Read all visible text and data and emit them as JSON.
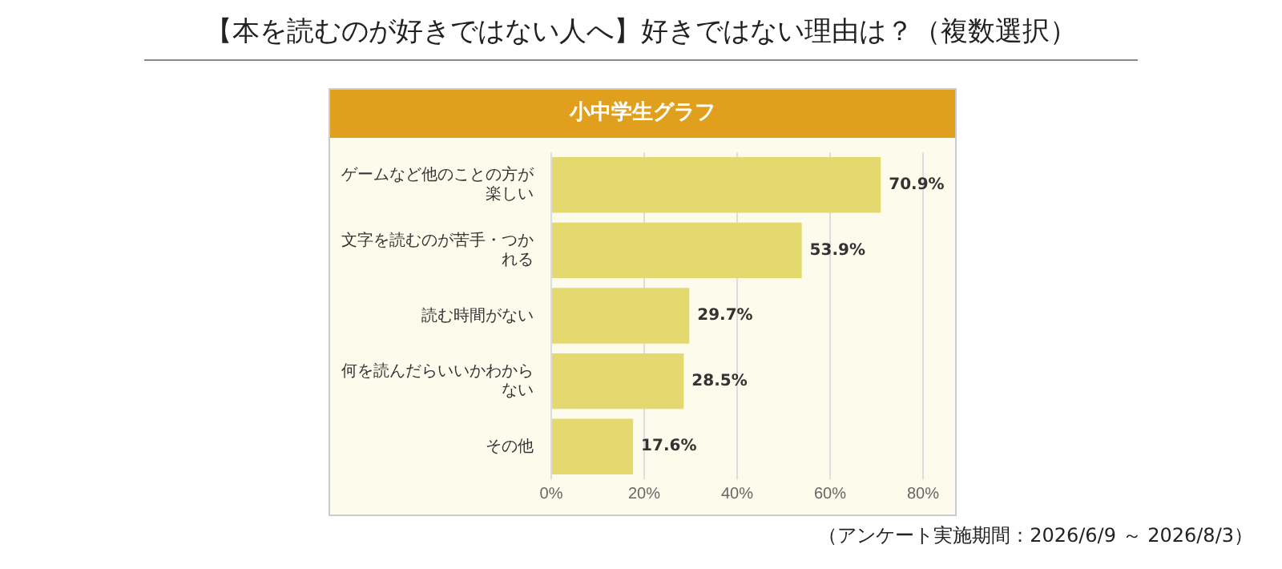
{
  "chart_data": {
    "type": "bar",
    "orientation": "horizontal",
    "title": "【本を読むのが好きではない人へ】好きではない理由は？（複数選択）",
    "subtitle": "小中学生グラフ",
    "categories": [
      "ゲームなど他のことの方が楽しい",
      "文字を読むのが苦手・つかれる",
      "読む時間がない",
      "何を読んだらいいかわからない",
      "その他"
    ],
    "values": [
      70.9,
      53.9,
      29.7,
      28.5,
      17.6
    ],
    "value_labels": [
      "70.9%",
      "53.9%",
      "29.7%",
      "28.5%",
      "17.6%"
    ],
    "color": "#e4d96e",
    "xlim": [
      0,
      80
    ],
    "xticks": [
      {
        "value": 0,
        "label": "0%"
      },
      {
        "value": 20,
        "label": "20%"
      },
      {
        "value": 40,
        "label": "40%"
      },
      {
        "value": 60,
        "label": "60%"
      },
      {
        "value": 80,
        "label": "80%"
      }
    ],
    "grid": "x",
    "legend": false,
    "annotations": [
      "（アンケート実施期間：2026/6/9 ～ 2026/8/3）"
    ]
  }
}
